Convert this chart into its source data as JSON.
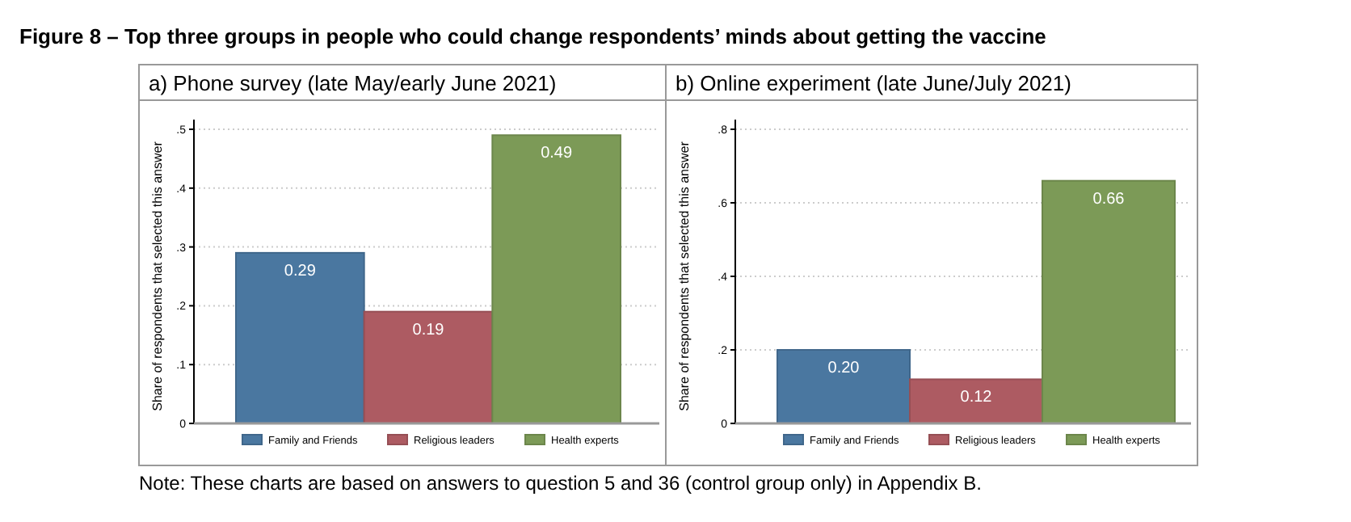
{
  "chart_data": [
    {
      "type": "bar",
      "title": "a) Phone survey (late May/early June 2021)",
      "ylabel": "Share of respondents that selected this answer",
      "categories": [
        null
      ],
      "series": [
        {
          "name": "Family and Friends",
          "color": "#4a77a0",
          "values": [
            0.29
          ],
          "value_labels": [
            "0.29"
          ]
        },
        {
          "name": "Religious leaders",
          "color": "#ad5b62",
          "values": [
            0.19
          ],
          "value_labels": [
            "0.19"
          ]
        },
        {
          "name": "Health experts",
          "color": "#7c9a57",
          "values": [
            0.49
          ],
          "value_labels": [
            "0.49"
          ]
        }
      ],
      "ylim": [
        0,
        0.5
      ],
      "yticks": [
        0,
        {
          "value": 0.1,
          "label": ".1"
        },
        {
          "value": 0.2,
          "label": ".2"
        },
        {
          "value": 0.3,
          "label": ".3"
        },
        {
          "value": 0.4,
          "label": ".4"
        },
        {
          "value": 0.5,
          "label": ".5"
        }
      ],
      "grid": "y",
      "legend": "bottom",
      "annotations": [
        "Figure 8 – Top three groups in people who could change respondents’ minds about getting the vaccine"
      ]
    },
    {
      "type": "bar",
      "title": "b) Online experiment (late June/July 2021)",
      "ylabel": "Share of respondents that selected this answer",
      "categories": [
        null
      ],
      "series": [
        {
          "name": "Family and Friends",
          "color": "#4a77a0",
          "values": [
            0.2
          ],
          "value_labels": [
            "0.20"
          ]
        },
        {
          "name": "Religious leaders",
          "color": "#ad5b62",
          "values": [
            0.12
          ],
          "value_labels": [
            "0.12"
          ]
        },
        {
          "name": "Health experts",
          "color": "#7c9a57",
          "values": [
            0.66
          ],
          "value_labels": [
            "0.66"
          ]
        }
      ],
      "ylim": [
        0,
        0.8
      ],
      "yticks": [
        0,
        {
          "value": 0.2,
          "label": ".2"
        },
        {
          "value": 0.4,
          "label": ".4"
        },
        {
          "value": 0.6,
          "label": ".6"
        },
        {
          "value": 0.8,
          "label": ".8"
        }
      ],
      "grid": "y",
      "legend": "bottom",
      "annotations": [
        "Note: These charts are based on answers to question 5 and 36 (control group only) in Appendix B."
      ]
    }
  ]
}
